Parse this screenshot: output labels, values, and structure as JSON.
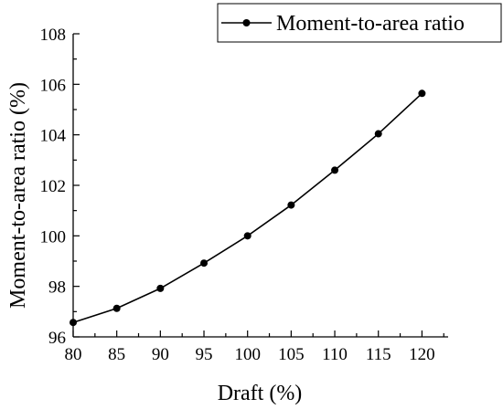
{
  "chart_data": {
    "type": "line",
    "xlabel": "Draft (%)",
    "ylabel": "Moment-to-area ratio (%)",
    "xlim": [
      80,
      123
    ],
    "ylim": [
      96,
      108
    ],
    "x_ticks": [
      80,
      85,
      90,
      95,
      100,
      105,
      110,
      115,
      120
    ],
    "y_ticks": [
      96,
      98,
      100,
      102,
      104,
      106,
      108
    ],
    "x_tick_labels": [
      "80",
      "85",
      "90",
      "95",
      "100",
      "105",
      "110",
      "115",
      "120"
    ],
    "y_tick_labels": [
      "96",
      "98",
      "100",
      "102",
      "104",
      "106",
      "108"
    ],
    "grid": false,
    "legend_position": "top-right",
    "series": [
      {
        "name": "Moment-to-area ratio",
        "color": "#000000",
        "marker": "circle",
        "x": [
          80,
          85,
          90,
          95,
          100,
          105,
          110,
          115,
          120
        ],
        "y": [
          96.57,
          97.13,
          97.92,
          98.92,
          100.0,
          101.22,
          102.6,
          104.04,
          105.64
        ]
      }
    ]
  }
}
